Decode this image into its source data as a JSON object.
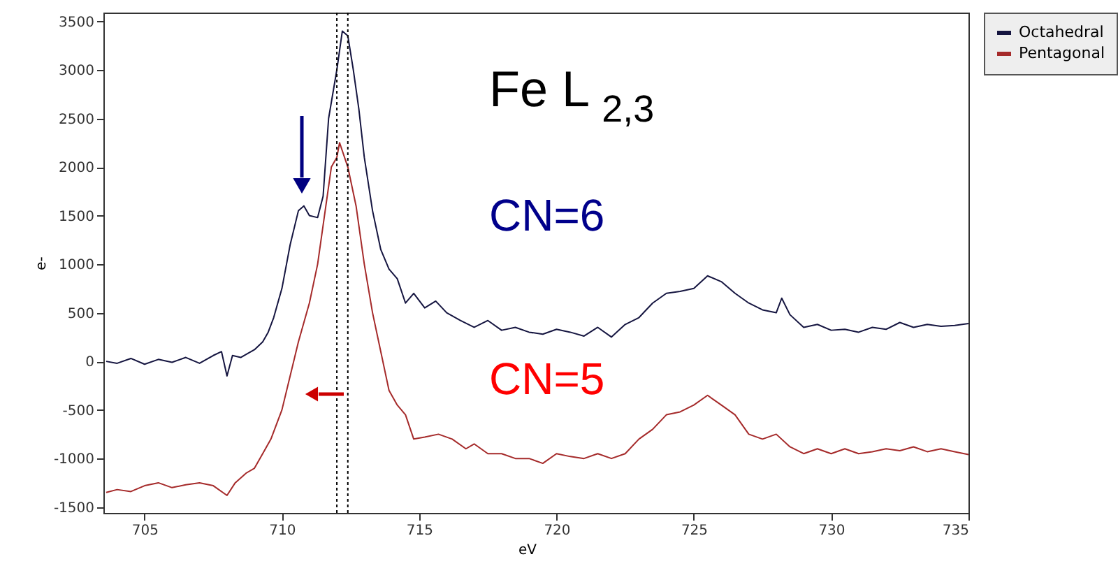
{
  "chart_data": {
    "type": "line",
    "xlabel": "eV",
    "ylabel": "e-",
    "x": [
      703.6,
      704,
      704.5,
      705,
      705.5,
      706,
      706.5,
      707,
      707.5,
      707.8,
      708,
      708.2,
      708.5,
      709,
      709.3,
      709.5,
      709.7,
      710,
      710.3,
      710.6,
      710.8,
      711,
      711.3,
      711.5,
      711.7,
      712,
      712.2,
      712.4,
      712.6,
      712.8,
      713,
      713.3,
      713.6,
      713.9,
      714.2,
      714.5,
      714.8,
      715.2,
      715.6,
      716,
      716.5,
      717,
      717.5,
      718,
      718.5,
      719,
      719.5,
      720,
      720.5,
      721,
      721.5,
      722,
      722.5,
      723,
      723.5,
      724,
      724.5,
      725,
      725.5,
      726,
      726.5,
      727,
      727.5,
      728,
      728.2,
      728.5,
      729,
      729.5,
      730,
      730.5,
      731,
      731.5,
      732,
      732.5,
      733,
      733.5,
      734,
      734.5,
      735
    ],
    "series": [
      {
        "name": "Octahedral",
        "color": "#151540",
        "values": [
          0,
          -20,
          30,
          -30,
          20,
          -10,
          40,
          -20,
          60,
          100,
          -150,
          60,
          40,
          120,
          200,
          300,
          450,
          750,
          1200,
          1550,
          1600,
          1500,
          1480,
          1700,
          2500,
          3000,
          3400,
          3350,
          3000,
          2600,
          2100,
          1550,
          1150,
          950,
          850,
          600,
          700,
          550,
          620,
          500,
          420,
          350,
          420,
          320,
          350,
          300,
          280,
          330,
          300,
          260,
          350,
          250,
          380,
          450,
          600,
          700,
          720,
          750,
          880,
          820,
          700,
          600,
          530,
          500,
          650,
          480,
          350,
          380,
          320,
          330,
          300,
          350,
          330,
          400,
          350,
          380,
          360,
          370,
          390
        ]
      },
      {
        "name": "Pentagonal",
        "color": "#a52a2a",
        "x": [
          703.6,
          704,
          704.5,
          705,
          705.5,
          706,
          706.5,
          707,
          707.5,
          708,
          708.3,
          708.7,
          709,
          709.3,
          709.6,
          710,
          710.3,
          710.6,
          711,
          711.3,
          711.6,
          711.8,
          712,
          712.1,
          712.4,
          712.7,
          713,
          713.3,
          713.6,
          713.9,
          714.2,
          714.5,
          714.8,
          715.2,
          715.7,
          716.2,
          716.7,
          717,
          717.5,
          718,
          718.5,
          719,
          719.5,
          720,
          720.5,
          721,
          721.5,
          722,
          722.5,
          723,
          723.5,
          724,
          724.5,
          725,
          725.5,
          726,
          726.5,
          727,
          727.5,
          728,
          728.5,
          729,
          729.5,
          730,
          730.5,
          731,
          731.5,
          732,
          732.5,
          733,
          733.5,
          734,
          734.5,
          735
        ],
        "values": [
          -1350,
          -1320,
          -1340,
          -1280,
          -1250,
          -1300,
          -1270,
          -1250,
          -1280,
          -1380,
          -1250,
          -1150,
          -1100,
          -950,
          -800,
          -500,
          -150,
          200,
          600,
          1000,
          1600,
          2000,
          2100,
          2250,
          2000,
          1600,
          1000,
          500,
          100,
          -300,
          -450,
          -550,
          -800,
          -780,
          -750,
          -800,
          -900,
          -850,
          -950,
          -950,
          -1000,
          -1000,
          -1050,
          -950,
          -980,
          -1000,
          -950,
          -1000,
          -950,
          -800,
          -700,
          -550,
          -520,
          -450,
          -350,
          -450,
          -550,
          -750,
          -800,
          -750,
          -880,
          -950,
          -900,
          -950,
          -900,
          -950,
          -930,
          -900,
          -920,
          -880,
          -930,
          -900,
          -930,
          -960
        ]
      }
    ],
    "xlim": [
      703.5,
      735
    ],
    "ylim": [
      -1560,
      3590
    ],
    "xticks": [
      705,
      710,
      715,
      720,
      725,
      730,
      735
    ],
    "yticks": [
      -1500,
      -1000,
      -500,
      0,
      500,
      1000,
      1500,
      2000,
      2500,
      3000,
      3500
    ],
    "ref_lines": [
      {
        "axis": "x",
        "value": 712.0,
        "color": "#000000",
        "line_style": "dotted"
      },
      {
        "axis": "x",
        "value": 712.4,
        "color": "#000000",
        "line_style": "dotted"
      }
    ],
    "annotations": [
      "Fe L$_{2,3}$",
      "CN=6",
      "CN=5"
    ],
    "grid": false,
    "legend": "top right",
    "marker": "none",
    "line_style": "solid"
  }
}
